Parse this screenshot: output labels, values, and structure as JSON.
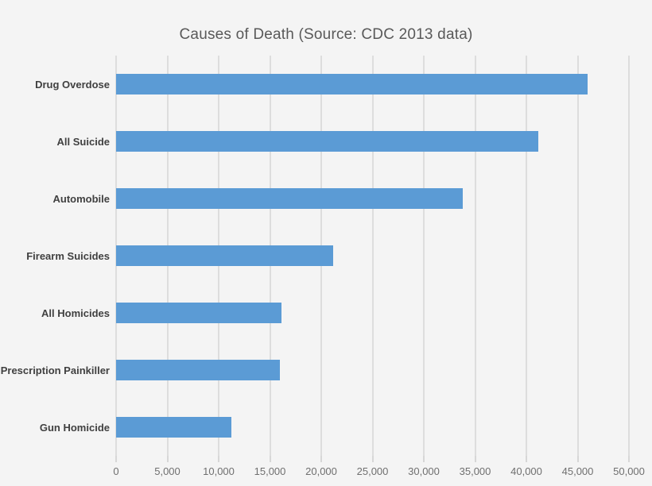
{
  "chart_data": {
    "type": "bar",
    "orientation": "horizontal",
    "title": "Causes of Death (Source: CDC 2013 data)",
    "categories": [
      "Drug Overdose",
      "All Suicide",
      "Automobile",
      "Firearm Suicides",
      "All Homicides",
      "Prescription Painkiller",
      "Gun Homicide"
    ],
    "values": [
      46000,
      41149,
      33804,
      21175,
      16121,
      16000,
      11208
    ],
    "xlabel": "",
    "ylabel": "",
    "xlim": [
      0,
      50000
    ],
    "x_ticks": [
      0,
      5000,
      10000,
      15000,
      20000,
      25000,
      30000,
      35000,
      40000,
      45000,
      50000
    ],
    "x_tick_labels": [
      "0",
      "5,000",
      "10,000",
      "15,000",
      "20,000",
      "25,000",
      "30,000",
      "35,000",
      "40,000",
      "45,000",
      "50,000"
    ],
    "grid": true,
    "legend": "none",
    "colors": {
      "bar": "#5b9bd5",
      "background": "#f4f4f4",
      "gridline": "#dddddd",
      "title_text": "#595959",
      "category_text": "#404040",
      "tick_text": "#6f6f6f"
    }
  }
}
